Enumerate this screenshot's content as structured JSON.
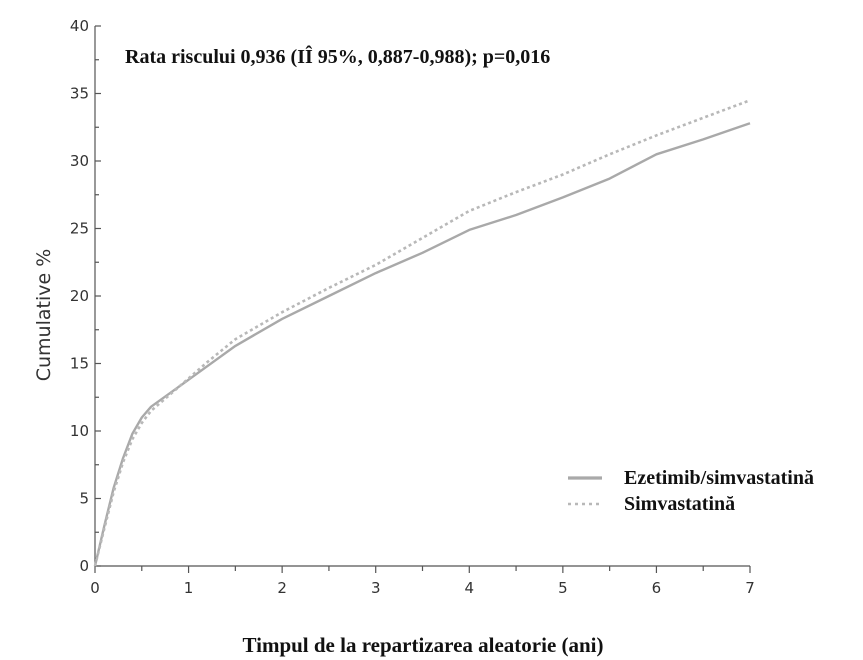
{
  "chart_data": {
    "type": "line",
    "title": "",
    "annotation": "Rata riscului 0,936 (IÎ 95%, 0,887-0,988); p=0,016",
    "xlabel": "Timpul de la repartizarea aleatorie (ani)",
    "ylabel": "Cumulative %",
    "xlim": [
      0,
      7
    ],
    "ylim": [
      0,
      40
    ],
    "x_ticks": [
      0,
      1,
      2,
      3,
      4,
      5,
      6,
      7
    ],
    "y_ticks": [
      0,
      5,
      10,
      15,
      20,
      25,
      30,
      35,
      40
    ],
    "legend_position": "bottom-right",
    "series": [
      {
        "name": "Ezetimib/simvastatină",
        "style": "solid",
        "color": "#a9a9a9",
        "x": [
          0,
          0.1,
          0.2,
          0.3,
          0.4,
          0.5,
          0.6,
          0.8,
          1.0,
          1.2,
          1.5,
          2.0,
          2.5,
          3.0,
          3.5,
          4.0,
          4.5,
          5.0,
          5.5,
          6.0,
          6.5,
          7.0
        ],
        "y": [
          0,
          3.0,
          5.8,
          8.0,
          9.8,
          11.0,
          11.8,
          12.8,
          13.8,
          14.8,
          16.3,
          18.3,
          20.0,
          21.7,
          23.2,
          24.9,
          26.0,
          27.3,
          28.7,
          30.5,
          31.6,
          32.8
        ]
      },
      {
        "name": "Simvastatină",
        "style": "dotted",
        "color": "#b8b8b8",
        "x": [
          0,
          0.1,
          0.2,
          0.3,
          0.4,
          0.5,
          0.6,
          0.8,
          1.0,
          1.2,
          1.5,
          2.0,
          2.5,
          3.0,
          3.5,
          4.0,
          4.5,
          5.0,
          5.5,
          6.0,
          6.5,
          7.0
        ],
        "y": [
          0,
          2.8,
          5.5,
          7.7,
          9.4,
          10.6,
          11.5,
          12.7,
          13.9,
          15.1,
          16.8,
          18.8,
          20.6,
          22.3,
          24.3,
          26.3,
          27.7,
          29.0,
          30.5,
          31.9,
          33.2,
          34.5
        ]
      }
    ]
  }
}
